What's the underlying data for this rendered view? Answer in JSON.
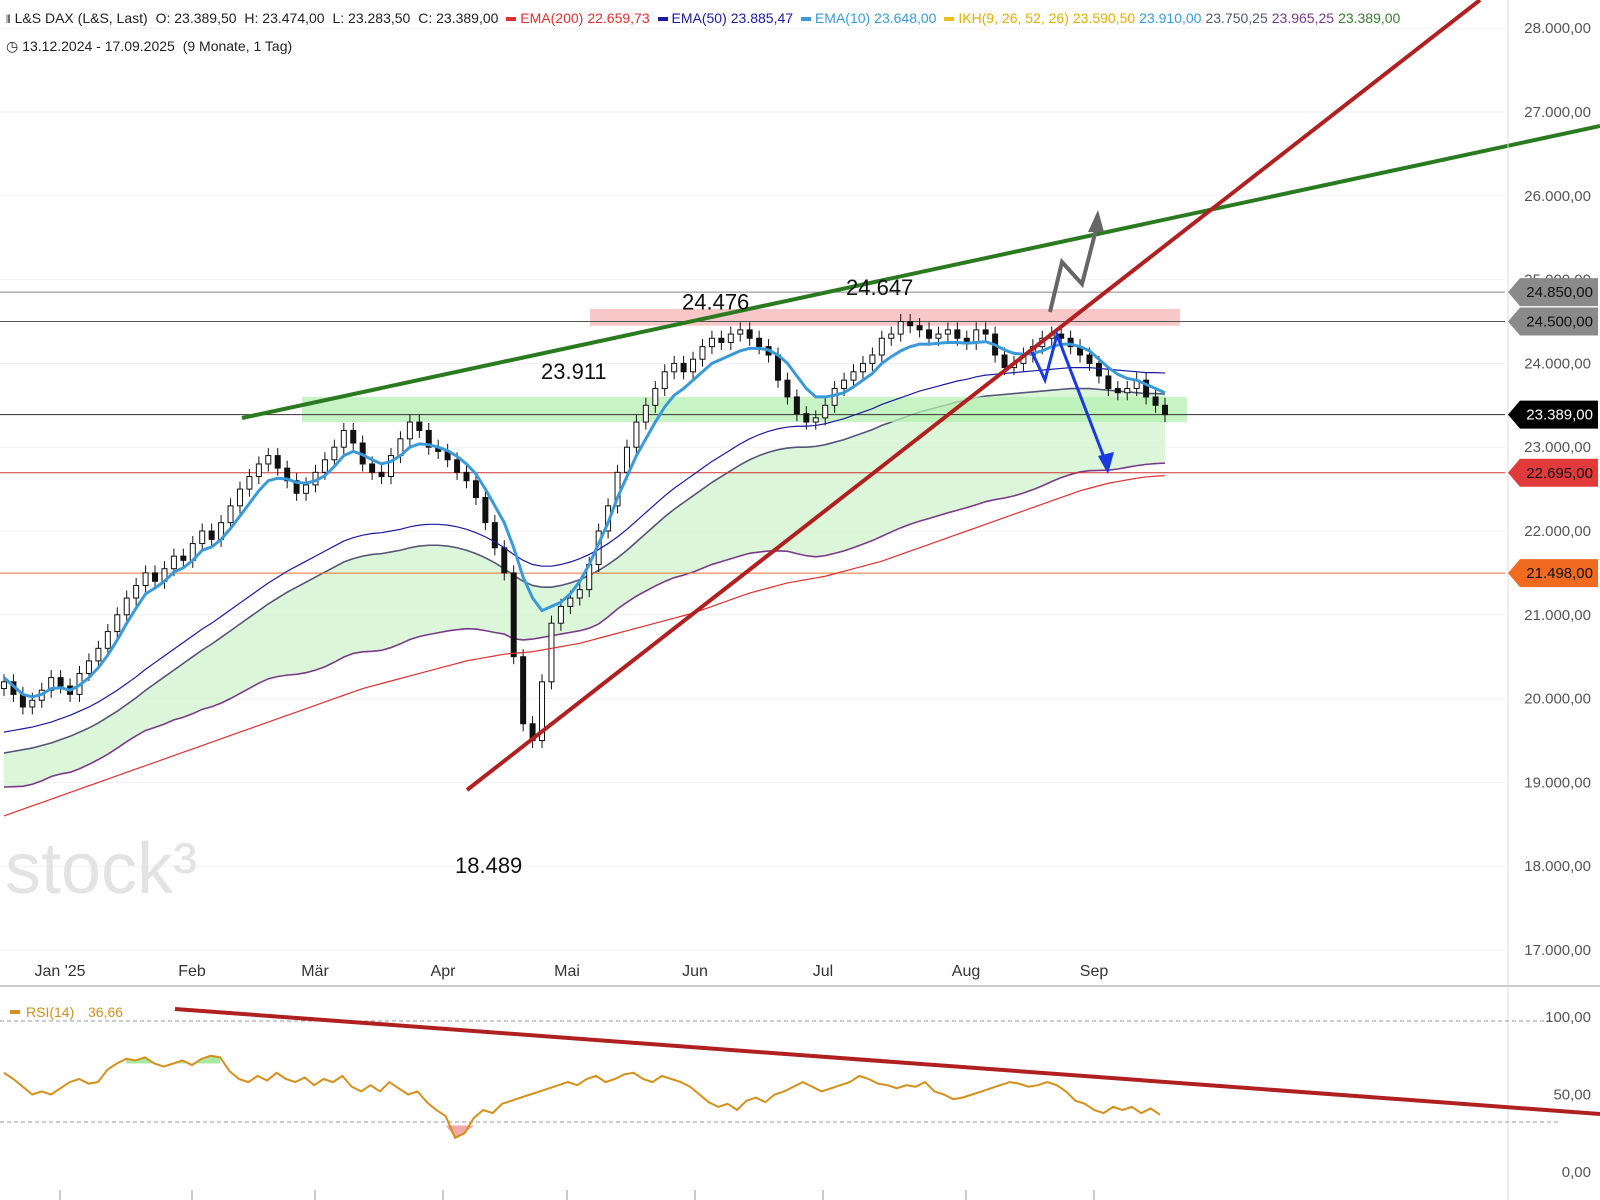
{
  "header": {
    "instrument": "L&S DAX (L&S, Last)",
    "open": "O: 23.389,50",
    "high": "H: 23.474,00",
    "low": "L: 23.283,50",
    "close": "C: 23.389,00",
    "ema200_label": "EMA(200)",
    "ema200_value": "22.659,73",
    "ema50_label": "EMA(50)",
    "ema50_value": "23.885,47",
    "ema10_label": "EMA(10)",
    "ema10_value": "23.648,00",
    "ikh_label": "IKH(9, 26, 52, 26)",
    "ikh_v1": "23.590,50",
    "ikh_v2": "23.910,00",
    "ikh_v3": "23.750,25",
    "ikh_v4": "23.965,25",
    "ikh_v5": "23.389,00",
    "range": "13.12.2024 - 17.09.2025",
    "period": "(9 Monate, 1 Tag)"
  },
  "colors": {
    "ema200": "#e03030",
    "ema50": "#1a1aa0",
    "ema10": "#3a9ad9",
    "ikh": "#f0c020",
    "ikh2": "#3a9ad9",
    "ikh3": "#555577",
    "ikh4": "#7a3a8a",
    "ikh5": "#3a7a30",
    "rsi": "#d4901a",
    "trend_red": "#b02020",
    "trend_green": "#2a7a20"
  },
  "watermark": "stock³",
  "chart_data": {
    "type": "candlestick",
    "title": "L&S DAX (L&S, Last)",
    "date_range": "13.12.2024 - 17.09.2025",
    "y_ticks": [
      "28.000,00",
      "27.000,00",
      "26.000,00",
      "25.000,00",
      "24.000,00",
      "23.000,00",
      "22.000,00",
      "21.000,00",
      "20.000,00",
      "19.000,00",
      "18.000,00",
      "17.000,00"
    ],
    "ylim": [
      16500,
      28150
    ],
    "x_ticks": [
      "Jan '25",
      "Feb",
      "Mär",
      "Apr",
      "Mai",
      "Jun",
      "Jul",
      "Aug",
      "Sep"
    ],
    "price_labels": [
      {
        "text": "24.850,00",
        "value": 24850,
        "style": "gray"
      },
      {
        "text": "24.500,00",
        "value": 24500,
        "style": "gray"
      },
      {
        "text": "23.389,00",
        "value": 23389,
        "style": "black"
      },
      {
        "text": "22.695,00",
        "value": 22695,
        "style": "red"
      },
      {
        "text": "21.498,00",
        "value": 21498,
        "style": "orange"
      }
    ],
    "annotations": [
      {
        "text": "24.476",
        "value": 24476
      },
      {
        "text": "24.647",
        "value": 24647
      },
      {
        "text": "23.911",
        "value": 23911
      },
      {
        "text": "18.489",
        "value": 18489
      }
    ],
    "closes": [
      20200,
      20050,
      19900,
      19980,
      20100,
      20250,
      20150,
      20050,
      20300,
      20450,
      20600,
      20800,
      21000,
      21200,
      21350,
      21500,
      21400,
      21550,
      21700,
      21650,
      21850,
      22000,
      21900,
      22100,
      22300,
      22500,
      22650,
      22800,
      22900,
      22750,
      22600,
      22450,
      22550,
      22700,
      22850,
      23000,
      23200,
      23050,
      22800,
      22700,
      22650,
      22900,
      23100,
      23300,
      23200,
      23000,
      22950,
      22850,
      22700,
      22600,
      22400,
      22100,
      21800,
      21500,
      20500,
      19700,
      19500,
      20200,
      20900,
      21100,
      21200,
      21300,
      21600,
      22000,
      22300,
      22700,
      23000,
      23300,
      23500,
      23700,
      23900,
      24000,
      23900,
      24050,
      24200,
      24300,
      24250,
      24350,
      24400,
      24300,
      24200,
      24100,
      23800,
      23600,
      23400,
      23300,
      23350,
      23500,
      23700,
      23800,
      23900,
      24000,
      24100,
      24300,
      24350,
      24500,
      24450,
      24400,
      24300,
      24350,
      24400,
      24300,
      24250,
      24400,
      24350,
      24100,
      23950,
      24000,
      24100,
      24200,
      24300,
      24350,
      24300,
      24200,
      24100,
      24000,
      23850,
      23700,
      23650,
      23700,
      23800,
      23600,
      23500,
      23389
    ],
    "ema10": [
      20250,
      20150,
      20050,
      20020,
      20050,
      20120,
      20130,
      20100,
      20160,
      20250,
      20370,
      20520,
      20700,
      20900,
      21080,
      21250,
      21320,
      21400,
      21510,
      21560,
      21650,
      21770,
      21810,
      21900,
      22030,
      22180,
      22330,
      22480,
      22600,
      22630,
      22620,
      22580,
      22570,
      22600,
      22660,
      22770,
      22900,
      22950,
      22910,
      22850,
      22800,
      22830,
      22900,
      23000,
      23040,
      23030,
      23000,
      22960,
      22890,
      22800,
      22680,
      22500,
      22300,
      22100,
      21800,
      21450,
      21200,
      21050,
      21100,
      21150,
      21250,
      21400,
      21600,
      21850,
      22100,
      22400,
      22650,
      22900,
      23100,
      23300,
      23480,
      23620,
      23700,
      23800,
      23900,
      24000,
      24050,
      24100,
      24150,
      24180,
      24180,
      24160,
      24100,
      24000,
      23850,
      23700,
      23600,
      23600,
      23620,
      23650,
      23720,
      23800,
      23880,
      24000,
      24080,
      24150,
      24200,
      24230,
      24230,
      24240,
      24250,
      24250,
      24240,
      24250,
      24260,
      24220,
      24160,
      24120,
      24110,
      24120,
      24150,
      24200,
      24230,
      24230,
      24200,
      24150,
      24050,
      23950,
      23870,
      23820,
      23800,
      23750,
      23700,
      23648
    ],
    "ema50": [
      19600,
      19620,
      19640,
      19660,
      19690,
      19720,
      19760,
      19800,
      19850,
      19900,
      19960,
      20030,
      20100,
      20180,
      20260,
      20350,
      20430,
      20510,
      20590,
      20670,
      20750,
      20830,
      20900,
      20980,
      21060,
      21140,
      21220,
      21300,
      21380,
      21450,
      21520,
      21580,
      21640,
      21700,
      21760,
      21820,
      21880,
      21920,
      21950,
      21970,
      21980,
      22000,
      22020,
      22050,
      22070,
      22080,
      22080,
      22070,
      22050,
      22020,
      21980,
      21930,
      21870,
      21800,
      21720,
      21650,
      21600,
      21580,
      21580,
      21600,
      21630,
      21670,
      21720,
      21780,
      21850,
      21930,
      22020,
      22120,
      22220,
      22320,
      22420,
      22510,
      22590,
      22670,
      22750,
      22830,
      22900,
      22970,
      23040,
      23100,
      23150,
      23190,
      23220,
      23240,
      23250,
      23250,
      23260,
      23280,
      23310,
      23340,
      23380,
      23420,
      23460,
      23510,
      23550,
      23590,
      23630,
      23670,
      23700,
      23730,
      23760,
      23790,
      23810,
      23840,
      23860,
      23870,
      23880,
      23890,
      23900,
      23910,
      23920,
      23930,
      23940,
      23950,
      23950,
      23950,
      23940,
      23930,
      23920,
      23910,
      23900,
      23890,
      23890,
      23885
    ],
    "ema200": [
      18600,
      18640,
      18680,
      18720,
      18760,
      18800,
      18840,
      18880,
      18920,
      18960,
      19000,
      19040,
      19080,
      19120,
      19160,
      19200,
      19240,
      19280,
      19320,
      19360,
      19400,
      19440,
      19480,
      19520,
      19560,
      19600,
      19640,
      19680,
      19720,
      19760,
      19800,
      19840,
      19880,
      19920,
      19960,
      20000,
      20040,
      20080,
      20120,
      20150,
      20180,
      20210,
      20240,
      20270,
      20300,
      20330,
      20360,
      20390,
      20420,
      20450,
      20470,
      20490,
      20510,
      20530,
      20540,
      20550,
      20560,
      20580,
      20600,
      20620,
      20640,
      20660,
      20690,
      20720,
      20750,
      20780,
      20810,
      20840,
      20870,
      20900,
      20930,
      20960,
      20990,
      21020,
      21060,
      21100,
      21140,
      21180,
      21220,
      21260,
      21290,
      21320,
      21350,
      21380,
      21400,
      21420,
      21440,
      21460,
      21490,
      21520,
      21550,
      21580,
      21610,
      21640,
      21680,
      21720,
      21760,
      21800,
      21840,
      21880,
      21920,
      21960,
      22000,
      22040,
      22080,
      22120,
      22160,
      22200,
      22240,
      22280,
      22320,
      22360,
      22400,
      22440,
      22480,
      22510,
      22540,
      22570,
      22590,
      22610,
      22630,
      22645,
      22655,
      22660
    ],
    "rsi": [
      64,
      60,
      55,
      50,
      52,
      50,
      54,
      58,
      60,
      57,
      58,
      66,
      70,
      73,
      72,
      74,
      70,
      68,
      70,
      72,
      69,
      73,
      75,
      74,
      65,
      60,
      58,
      62,
      59,
      64,
      60,
      58,
      61,
      56,
      60,
      58,
      62,
      55,
      52,
      56,
      52,
      58,
      54,
      50,
      52,
      45,
      40,
      36,
      22,
      25,
      35,
      40,
      38,
      44,
      46,
      48,
      50,
      52,
      54,
      56,
      58,
      56,
      60,
      62,
      58,
      60,
      63,
      64,
      60,
      58,
      62,
      60,
      58,
      55,
      50,
      45,
      42,
      44,
      40,
      46,
      48,
      45,
      50,
      52,
      55,
      58,
      55,
      52,
      54,
      56,
      58,
      62,
      60,
      57,
      56,
      54,
      56,
      55,
      58,
      52,
      50,
      47,
      48,
      50,
      52,
      54,
      56,
      58,
      57,
      55,
      56,
      58,
      56,
      52,
      46,
      44,
      40,
      38,
      42,
      40,
      42,
      38,
      41,
      37
    ],
    "rsi_label": "RSI(14)",
    "rsi_value": "36,66",
    "rsi_ticks": [
      "100,00",
      "50,00",
      "0,00"
    ]
  }
}
